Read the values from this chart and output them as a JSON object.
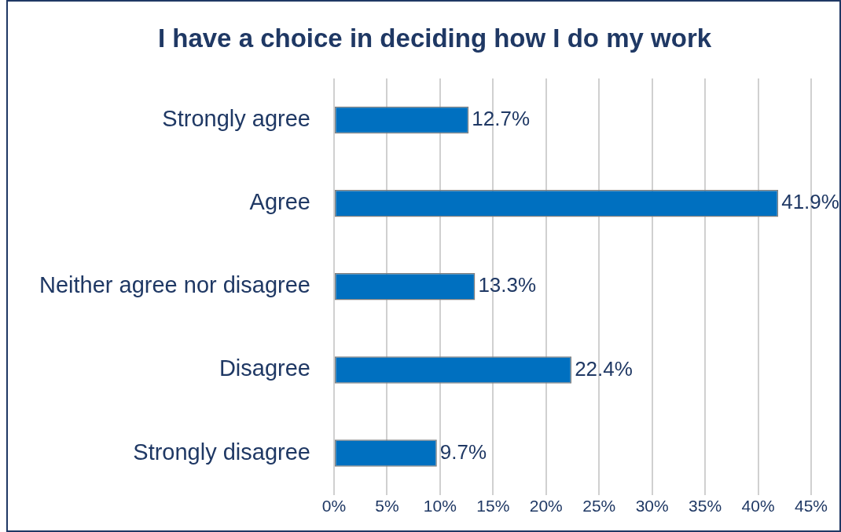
{
  "chart_data": {
    "type": "bar",
    "orientation": "horizontal",
    "title": "I have a choice in deciding how I do my work",
    "categories": [
      "Strongly agree",
      "Agree",
      "Neither agree nor disagree",
      "Disagree",
      "Strongly disagree"
    ],
    "values": [
      12.7,
      41.9,
      13.3,
      22.4,
      9.7
    ],
    "value_labels": [
      "12.7%",
      "41.9%",
      "13.3%",
      "22.4%",
      "9.7%"
    ],
    "color": "#0070c0",
    "xlim": [
      0,
      45
    ],
    "xticks": [
      {
        "value": 0,
        "label": "0%"
      },
      {
        "value": 5,
        "label": "5%"
      },
      {
        "value": 10,
        "label": "10%"
      },
      {
        "value": 15,
        "label": "15%"
      },
      {
        "value": 20,
        "label": "20%"
      },
      {
        "value": 25,
        "label": "25%"
      },
      {
        "value": 30,
        "label": "30%"
      },
      {
        "value": 35,
        "label": "35%"
      },
      {
        "value": 40,
        "label": "40%"
      },
      {
        "value": 45,
        "label": "45%"
      }
    ],
    "grid": "x",
    "legend": false
  }
}
